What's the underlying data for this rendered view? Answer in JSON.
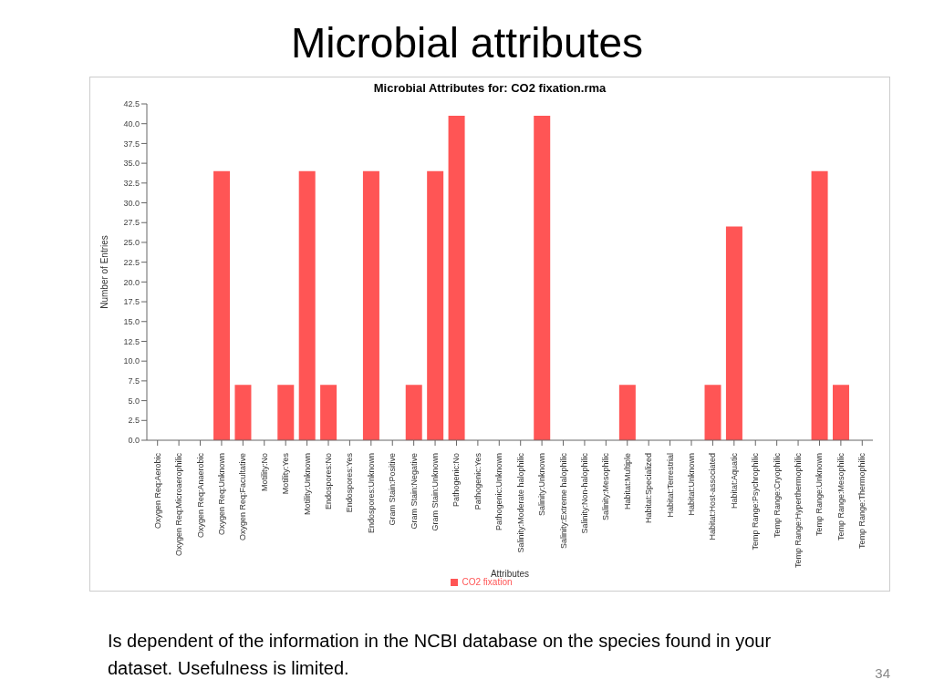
{
  "chart_data": {
    "type": "bar",
    "title": "Microbial Attributes for: CO2 fixation.rma",
    "subtitle": "Microbial attributes",
    "xlabel": "Attributes",
    "ylabel": "Number of Entries",
    "categories": [
      "Oxygen Req:Aerobic",
      "Oxygen Req:Microaerophilic",
      "Oxygen Req:Anaerobic",
      "Oxygen Req:Unknown",
      "Oxygen Req:Facultative",
      "Motility:No",
      "Motility:Yes",
      "Motility:Unknown",
      "Endospores:No",
      "Endospores:Yes",
      "Endospores:Unknown",
      "Gram Stain:Positive",
      "Gram Stain:Negative",
      "Gram Stain:Unknown",
      "Pathogenic:No",
      "Pathogenic:Yes",
      "Pathogenic:Unknown",
      "Salinity:Moderate halophilic",
      "Salinity:Unknown",
      "Salinity:Extreme halophilic",
      "Salinity:Non-halophilic",
      "Salinity:Mesophilic",
      "Habitat:Multiple",
      "Habitat:Specialized",
      "Habitat:Terrestrial",
      "Habitat:Unknown",
      "Habitat:Host-associated",
      "Habitat:Aquatic",
      "Temp Range:Psychrophilic",
      "Temp Range:Cryophilic",
      "Temp Range:Hyperthermophilic",
      "Temp Range:Unknown",
      "Temp Range:Mesophilic",
      "Temp Range:Thermophilic"
    ],
    "series": [
      {
        "name": "CO2 fixation",
        "color": "#ff5555",
        "values": [
          0,
          0,
          0,
          34,
          7,
          0,
          7,
          34,
          7,
          0,
          34,
          0,
          7,
          34,
          41,
          0,
          0,
          0,
          41,
          0,
          0,
          0,
          7,
          0,
          0,
          0,
          7,
          27,
          0,
          0,
          0,
          34,
          7,
          0
        ]
      }
    ],
    "ylim": [
      0,
      42.5
    ],
    "yticks": [
      {
        "value": 0,
        "label": "0.0"
      },
      2.5,
      {
        "value": 5,
        "label": "5.0"
      },
      7.5,
      {
        "value": 10,
        "label": "10.0"
      },
      12.5,
      {
        "value": 15,
        "label": "15.0"
      },
      17.5,
      {
        "value": 20,
        "label": "20.0"
      },
      22.5,
      {
        "value": 25,
        "label": "25.0"
      },
      27.5,
      {
        "value": 30,
        "label": "30.0"
      },
      32.5,
      {
        "value": 35,
        "label": "35.0"
      },
      37.5,
      {
        "value": 40,
        "label": "40.0"
      },
      42.5
    ],
    "grid": false,
    "legend": "bottom",
    "annotations": [
      "Is dependent of the information in the NCBI database on the species found in your dataset. Usefulness is limited.",
      "34"
    ]
  }
}
